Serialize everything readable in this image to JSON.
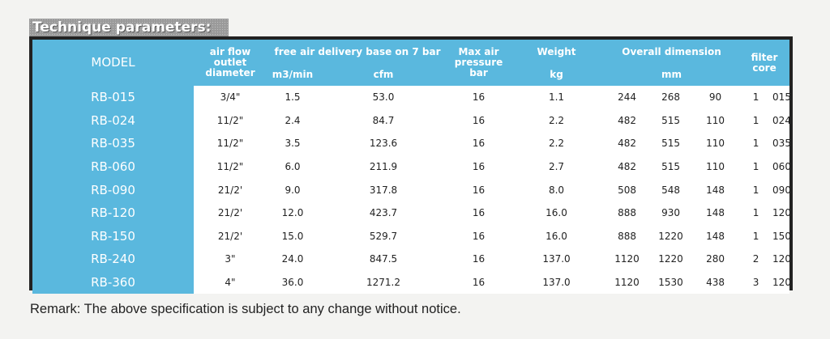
{
  "section_title": "Technique parameters:",
  "headers": {
    "model": "MODEL",
    "outlet_line1": "air flow",
    "outlet_line2": "outlet",
    "outlet_line3": "diameter",
    "delivery": "free air delivery base on 7 bar",
    "m3min": "m3/min",
    "cfm": "cfm",
    "pressure_line1": "Max air",
    "pressure_line2": "pressure",
    "pressure_unit": "bar",
    "weight": "Weight",
    "weight_unit": "kg",
    "dimension": "Overall dimension",
    "dimension_unit": "mm",
    "filter": "filter core"
  },
  "rows": [
    {
      "model": "RB-015",
      "outlet": "3/4\"",
      "m3min": "1.5",
      "cfm": "53.0",
      "bar": "16",
      "kg": "1.1",
      "d1": "244",
      "d2": "268",
      "d3": "90",
      "f1": "1",
      "f2": "015"
    },
    {
      "model": "RB-024",
      "outlet": "11/2\"",
      "m3min": "2.4",
      "cfm": "84.7",
      "bar": "16",
      "kg": "2.2",
      "d1": "482",
      "d2": "515",
      "d3": "110",
      "f1": "1",
      "f2": "024"
    },
    {
      "model": "RB-035",
      "outlet": "11/2\"",
      "m3min": "3.5",
      "cfm": "123.6",
      "bar": "16",
      "kg": "2.2",
      "d1": "482",
      "d2": "515",
      "d3": "110",
      "f1": "1",
      "f2": "035"
    },
    {
      "model": "RB-060",
      "outlet": "11/2\"",
      "m3min": "6.0",
      "cfm": "211.9",
      "bar": "16",
      "kg": "2.7",
      "d1": "482",
      "d2": "515",
      "d3": "110",
      "f1": "1",
      "f2": "060"
    },
    {
      "model": "RB-090",
      "outlet": "21/2'",
      "m3min": "9.0",
      "cfm": "317.8",
      "bar": "16",
      "kg": "8.0",
      "d1": "508",
      "d2": "548",
      "d3": "148",
      "f1": "1",
      "f2": "090"
    },
    {
      "model": "RB-120",
      "outlet": "21/2'",
      "m3min": "12.0",
      "cfm": "423.7",
      "bar": "16",
      "kg": "16.0",
      "d1": "888",
      "d2": "930",
      "d3": "148",
      "f1": "1",
      "f2": "120"
    },
    {
      "model": "RB-150",
      "outlet": "21/2'",
      "m3min": "15.0",
      "cfm": "529.7",
      "bar": "16",
      "kg": "16.0",
      "d1": "888",
      "d2": "1220",
      "d3": "148",
      "f1": "1",
      "f2": "150"
    },
    {
      "model": "RB-240",
      "outlet": "3\"",
      "m3min": "24.0",
      "cfm": "847.5",
      "bar": "16",
      "kg": "137.0",
      "d1": "1120",
      "d2": "1220",
      "d3": "280",
      "f1": "2",
      "f2": "120"
    },
    {
      "model": "RB-360",
      "outlet": "4\"",
      "m3min": "36.0",
      "cfm": "1271.2",
      "bar": "16",
      "kg": "137.0",
      "d1": "1120",
      "d2": "1530",
      "d3": "438",
      "f1": "3",
      "f2": "120"
    }
  ],
  "remark": "Remark: The above specification is subject to any change without notice.",
  "colors": {
    "header_blue": "#5ab8de",
    "frame": "#222222"
  }
}
